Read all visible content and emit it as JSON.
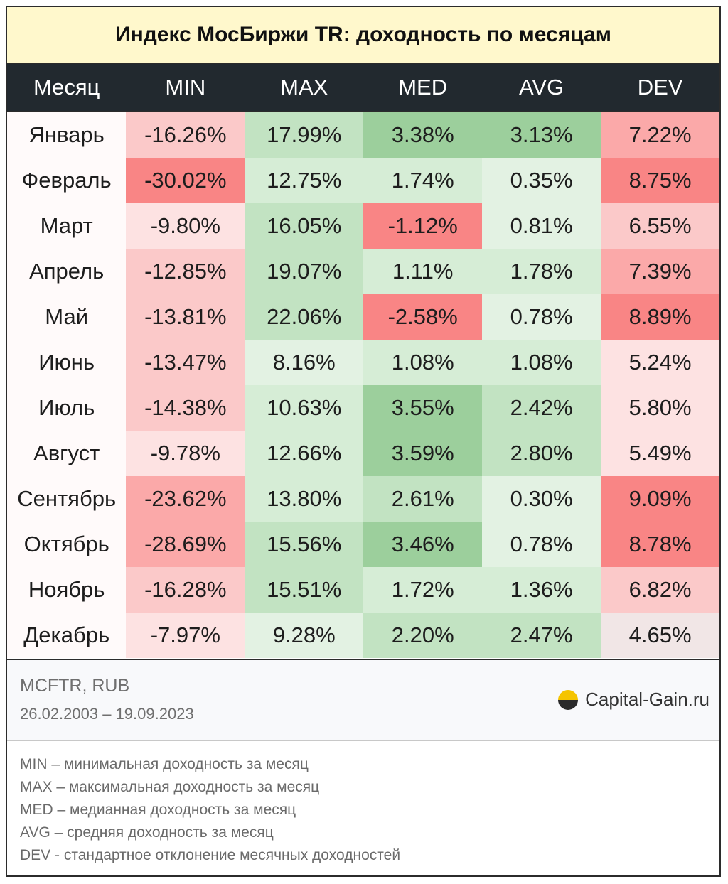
{
  "title": "Индекс МосБиржи TR: доходность по месяцам",
  "chart_data": {
    "type": "table",
    "title": "Индекс МосБиржи TR: доходность по месяцам",
    "columns": [
      "Месяц",
      "MIN",
      "MAX",
      "MED",
      "AVG",
      "DEV"
    ],
    "rows": [
      {
        "month": "Январь",
        "cells": [
          {
            "text": "-16.26%",
            "color": "#fbc9c9"
          },
          {
            "text": "17.99%",
            "color": "#c2e3c2"
          },
          {
            "text": "3.38%",
            "color": "#9ccf9c"
          },
          {
            "text": "3.13%",
            "color": "#9ccf9c"
          },
          {
            "text": "7.22%",
            "color": "#fba9a9"
          }
        ]
      },
      {
        "month": "Февраль",
        "cells": [
          {
            "text": "-30.02%",
            "color": "#f98585"
          },
          {
            "text": "12.75%",
            "color": "#d6edd6"
          },
          {
            "text": "1.74%",
            "color": "#d6edd6"
          },
          {
            "text": "0.35%",
            "color": "#e3f2e3"
          },
          {
            "text": "8.75%",
            "color": "#f98585"
          }
        ]
      },
      {
        "month": "Март",
        "cells": [
          {
            "text": "-9.80%",
            "color": "#fde2e2"
          },
          {
            "text": "16.05%",
            "color": "#c2e3c2"
          },
          {
            "text": "-1.12%",
            "color": "#f98585"
          },
          {
            "text": "0.81%",
            "color": "#e3f2e3"
          },
          {
            "text": "6.55%",
            "color": "#fbc9c9"
          }
        ]
      },
      {
        "month": "Апрель",
        "cells": [
          {
            "text": "-12.85%",
            "color": "#fbc9c9"
          },
          {
            "text": "19.07%",
            "color": "#c2e3c2"
          },
          {
            "text": "1.11%",
            "color": "#d6edd6"
          },
          {
            "text": "1.78%",
            "color": "#d6edd6"
          },
          {
            "text": "7.39%",
            "color": "#fba9a9"
          }
        ]
      },
      {
        "month": "Май",
        "cells": [
          {
            "text": "-13.81%",
            "color": "#fbc9c9"
          },
          {
            "text": "22.06%",
            "color": "#c2e3c2"
          },
          {
            "text": "-2.58%",
            "color": "#f98585"
          },
          {
            "text": "0.78%",
            "color": "#e3f2e3"
          },
          {
            "text": "8.89%",
            "color": "#f98585"
          }
        ]
      },
      {
        "month": "Июнь",
        "cells": [
          {
            "text": "-13.47%",
            "color": "#fbc9c9"
          },
          {
            "text": "8.16%",
            "color": "#e3f2e3"
          },
          {
            "text": "1.08%",
            "color": "#d6edd6"
          },
          {
            "text": "1.08%",
            "color": "#d6edd6"
          },
          {
            "text": "5.24%",
            "color": "#fde2e2"
          }
        ]
      },
      {
        "month": "Июль",
        "cells": [
          {
            "text": "-14.38%",
            "color": "#fbc9c9"
          },
          {
            "text": "10.63%",
            "color": "#d6edd6"
          },
          {
            "text": "3.55%",
            "color": "#9ccf9c"
          },
          {
            "text": "2.42%",
            "color": "#c2e3c2"
          },
          {
            "text": "5.80%",
            "color": "#fde2e2"
          }
        ]
      },
      {
        "month": "Август",
        "cells": [
          {
            "text": "-9.78%",
            "color": "#fde2e2"
          },
          {
            "text": "12.66%",
            "color": "#d6edd6"
          },
          {
            "text": "3.59%",
            "color": "#9ccf9c"
          },
          {
            "text": "2.80%",
            "color": "#c2e3c2"
          },
          {
            "text": "5.49%",
            "color": "#fde2e2"
          }
        ]
      },
      {
        "month": "Сентябрь",
        "cells": [
          {
            "text": "-23.62%",
            "color": "#fba9a9"
          },
          {
            "text": "13.80%",
            "color": "#d6edd6"
          },
          {
            "text": "2.61%",
            "color": "#c2e3c2"
          },
          {
            "text": "0.30%",
            "color": "#e3f2e3"
          },
          {
            "text": "9.09%",
            "color": "#f98585"
          }
        ]
      },
      {
        "month": "Октябрь",
        "cells": [
          {
            "text": "-28.69%",
            "color": "#fba9a9"
          },
          {
            "text": "15.56%",
            "color": "#c2e3c2"
          },
          {
            "text": "3.46%",
            "color": "#9ccf9c"
          },
          {
            "text": "0.78%",
            "color": "#e3f2e3"
          },
          {
            "text": "8.78%",
            "color": "#f98585"
          }
        ]
      },
      {
        "month": "Ноябрь",
        "cells": [
          {
            "text": "-16.28%",
            "color": "#fbc9c9"
          },
          {
            "text": "15.51%",
            "color": "#c2e3c2"
          },
          {
            "text": "1.72%",
            "color": "#d6edd6"
          },
          {
            "text": "1.36%",
            "color": "#d6edd6"
          },
          {
            "text": "6.82%",
            "color": "#fbc9c9"
          }
        ]
      },
      {
        "month": "Декабрь",
        "cells": [
          {
            "text": "-7.97%",
            "color": "#fde2e2"
          },
          {
            "text": "9.28%",
            "color": "#e3f2e3"
          },
          {
            "text": "2.20%",
            "color": "#c2e3c2"
          },
          {
            "text": "2.47%",
            "color": "#c2e3c2"
          },
          {
            "text": "4.65%",
            "color": "#f1e6e6"
          }
        ]
      }
    ]
  },
  "footer": {
    "ticker": "MCFTR, RUB",
    "range": "26.02.2003 – 19.09.2023",
    "brand": "Capital-Gain.ru"
  },
  "legend": [
    "MIN – минимальная доходность за месяц",
    "MAX – максимальная доходность за месяц",
    "MED – медианная доходность за месяц",
    "AVG – средняя доходность за месяц",
    "DEV - стандартное отклонение месячных доходностей"
  ],
  "colors": {
    "header_bg": "#22292f",
    "title_bg": "#fff8cc",
    "logo_yellow": "#f5c400",
    "logo_dark": "#2a2a2a"
  }
}
